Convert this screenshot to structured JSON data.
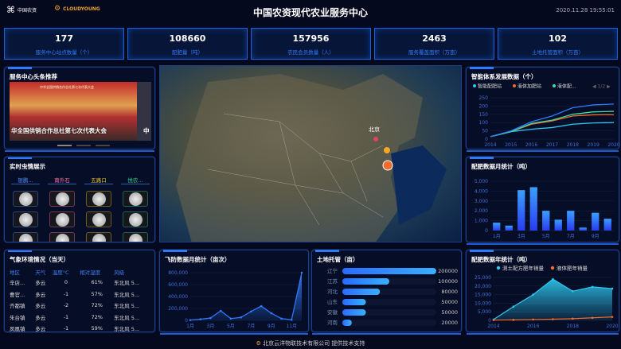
{
  "header": {
    "title": "中国农资现代农业服务中心",
    "timestamp": "2020.11.28 19:55:01",
    "logo1": "中国农资",
    "logo2": "CLOUDYOUNG"
  },
  "kpis": [
    {
      "value": "177",
      "label": "服务中心站点数量（个）"
    },
    {
      "value": "108660",
      "label": "配肥量（吨）"
    },
    {
      "value": "157956",
      "label": "农民会员数量（人）"
    },
    {
      "value": "2463",
      "label": "服务覆盖面积（万亩）"
    },
    {
      "value": "102",
      "label": "土地托管面积（万亩）"
    }
  ],
  "news": {
    "title": "服务中心头条推荐",
    "caption": "华全国供销合作总社第七次代表大会",
    "caption2": "中",
    "banner": "中华全国供销合作总社第七次代表大会"
  },
  "insects": {
    "title": "实时虫情展示",
    "locations": [
      {
        "name": "银鹏...",
        "color": "#4f8ef7"
      },
      {
        "name": "南外石",
        "color": "#ff6fa0"
      },
      {
        "name": "五路口",
        "color": "#f3c623"
      },
      {
        "name": "悦农...",
        "color": "#33d18c"
      }
    ]
  },
  "weather": {
    "title": "气象环境情况（当天）",
    "headers": [
      "地区",
      "天气",
      "温度°C",
      "相对湿度",
      "风级"
    ],
    "rows": [
      [
        "辛店...",
        "多云",
        "0",
        "61%",
        "东北风 5..."
      ],
      [
        "曹官...",
        "多云",
        "-1",
        "57%",
        "东北风 5..."
      ],
      [
        "齐都镇",
        "多云",
        "-2",
        "72%",
        "东北风 5..."
      ],
      [
        "朱台镇",
        "多云",
        "-1",
        "72%",
        "东北风 5..."
      ],
      [
        "凤凰镇",
        "多云",
        "-1",
        "59%",
        "东北风 5..."
      ]
    ]
  },
  "map": {
    "city_label": "北京"
  },
  "footer": {
    "text": "北京云洋物联技术有限公司 提供技术支持"
  },
  "chart_data": [
    {
      "id": "dev",
      "type": "line",
      "title": "智能体系发展数据（个）",
      "legend_page": "1/2",
      "x": [
        "2014",
        "2015",
        "2016",
        "2017",
        "2018",
        "2019",
        "2020"
      ],
      "ylim": [
        0,
        250
      ],
      "yticks": [
        0,
        50,
        100,
        150,
        200,
        250
      ],
      "series": [
        {
          "name": "智能配肥站",
          "color": "#2fc8f0",
          "values": [
            15,
            45,
            60,
            70,
            90,
            98,
            100
          ]
        },
        {
          "name": "液体加肥站",
          "color": "#f26b2e",
          "values": [
            15,
            45,
            90,
            110,
            140,
            147,
            148
          ]
        },
        {
          "name": "液体配...",
          "color": "#3be0a0",
          "values": [
            15,
            45,
            95,
            115,
            150,
            165,
            168
          ]
        },
        {
          "color": "#2f7bff",
          "values": [
            15,
            50,
            105,
            140,
            190,
            207,
            212
          ]
        }
      ]
    },
    {
      "id": "monthly",
      "type": "bar",
      "title": "配肥数据月统计（吨）",
      "categories": [
        "1月",
        "2月",
        "3月",
        "4月",
        "5月",
        "6月",
        "7月",
        "8月",
        "9月",
        "10月"
      ],
      "tick_labels": [
        "1月",
        "3月",
        "5月",
        "7月",
        "9月"
      ],
      "values": [
        800,
        500,
        4100,
        4400,
        2000,
        1100,
        2000,
        300,
        1800,
        1200
      ],
      "ylim": [
        0,
        5000
      ],
      "yticks": [
        "0",
        "1,000",
        "2,000",
        "3,000",
        "4,000",
        "5,000"
      ]
    },
    {
      "id": "annual",
      "type": "area",
      "title": "配肥数据年统计（吨）",
      "x": [
        "2014",
        "2015",
        "2016",
        "2017",
        "2018",
        "2019",
        "2020"
      ],
      "tick_labels": [
        "2014",
        "2016",
        "2018",
        "2020"
      ],
      "ylim": [
        0,
        25000
      ],
      "yticks": [
        "0",
        "5,000",
        "10,000",
        "15,000",
        "20,000",
        "25,000"
      ],
      "series": [
        {
          "name": "测土配方肥年销量",
          "color": "#2fc8f0",
          "values": [
            500,
            8000,
            15000,
            24000,
            17000,
            19500,
            18500
          ]
        },
        {
          "name": "液体肥年销量",
          "color": "#f26b2e",
          "values": [
            200,
            300,
            500,
            700,
            1000,
            1500,
            2000
          ]
        }
      ]
    },
    {
      "id": "flight",
      "type": "area",
      "title": "飞防数据月统计（亩次）",
      "x": [
        "1月",
        "2月",
        "3月",
        "4月",
        "5月",
        "6月",
        "7月",
        "8月",
        "9月",
        "10月",
        "11月",
        "12月"
      ],
      "tick_labels": [
        "1月",
        "3月",
        "5月",
        "7月",
        "9月",
        "11月"
      ],
      "ylim": [
        0,
        800000
      ],
      "yticks": [
        "0",
        "200,000",
        "400,000",
        "600,000",
        "800,000"
      ],
      "series": [
        {
          "color": "#2f7bff",
          "values": [
            5000,
            20000,
            40000,
            160000,
            30000,
            50000,
            150000,
            240000,
            120000,
            30000,
            10000,
            800000
          ]
        }
      ]
    },
    {
      "id": "land",
      "type": "hbar",
      "title": "土地托管（亩）",
      "categories": [
        "辽宁",
        "江苏",
        "河北",
        "山东",
        "安徽",
        "河南"
      ],
      "values": [
        200000,
        100000,
        80000,
        50000,
        50000,
        20000
      ],
      "value_labels": [
        "200000",
        "100000",
        "80000",
        "50000",
        "50000",
        "20000"
      ]
    }
  ]
}
